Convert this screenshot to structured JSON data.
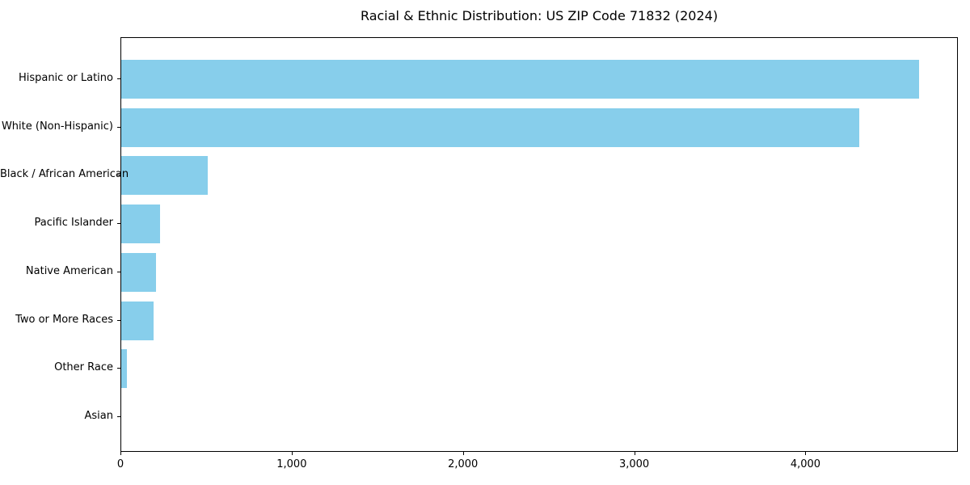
{
  "chart_data": {
    "type": "bar",
    "orientation": "horizontal",
    "title": "Racial & Ethnic Distribution: US ZIP Code 71832 (2024)",
    "categories": [
      "Hispanic or Latino",
      "White (Non-Hispanic)",
      "Black / African American",
      "Pacific Islander",
      "Native American",
      "Two or More Races",
      "Other Race",
      "Asian"
    ],
    "values": [
      4660,
      4310,
      505,
      228,
      204,
      190,
      35,
      0
    ],
    "xlabel": "",
    "ylabel": "",
    "xlim": [
      0,
      4890
    ],
    "xticks": [
      0,
      1000,
      2000,
      3000,
      4000
    ],
    "xtick_labels": [
      "0",
      "1,000",
      "2,000",
      "3,000",
      "4,000"
    ],
    "bar_color": "#87CEEB",
    "grid": false,
    "legend_position": "none"
  }
}
